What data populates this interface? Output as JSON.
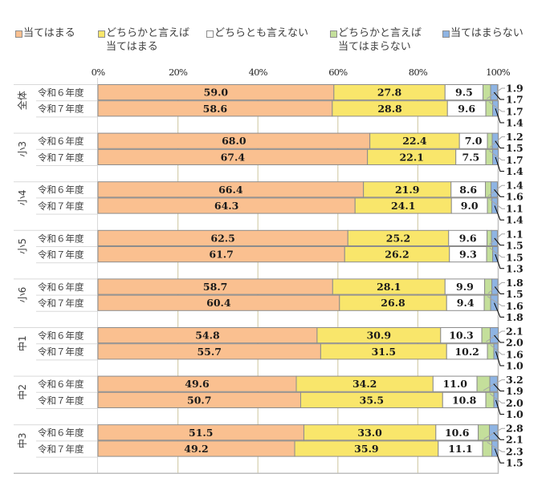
{
  "legend": {
    "items": [
      {
        "lines": [
          "当てはまる",
          ""
        ],
        "color": "#FAC090"
      },
      {
        "lines": [
          "どちらかと言えば",
          "当てはまる"
        ],
        "color": "#F9E66B"
      },
      {
        "lines": [
          "どちらとも言えない",
          ""
        ],
        "color": "#FFFFFF"
      },
      {
        "lines": [
          "どちらかと言えば",
          "当てはまらない"
        ],
        "color": "#C4DF9B"
      },
      {
        "lines": [
          "当てはまらない",
          ""
        ],
        "color": "#8EB4E3"
      }
    ]
  },
  "chart_data": {
    "type": "bar",
    "orientation": "horizontal",
    "stacked": "percent",
    "title": "",
    "xlabel": "",
    "ylabel": "",
    "xlim": [
      0,
      100
    ],
    "xticks": [
      "0%",
      "20%",
      "40%",
      "60%",
      "80%",
      "100%"
    ],
    "grid": true,
    "legend_position": "top",
    "groups": [
      "全体",
      "小3",
      "小4",
      "小5",
      "小6",
      "中1",
      "中2",
      "中3"
    ],
    "row_labels": [
      "令和６年度",
      "令和７年度"
    ],
    "categories": [
      "全体 令和６年度",
      "全体 令和７年度",
      "小3 令和６年度",
      "小3 令和７年度",
      "小4 令和６年度",
      "小4 令和７年度",
      "小5 令和６年度",
      "小5 令和７年度",
      "小6 令和６年度",
      "小6 令和７年度",
      "中1 令和６年度",
      "中1 令和７年度",
      "中2 令和６年度",
      "中2 令和７年度",
      "中3 令和６年度",
      "中3 令和７年度"
    ],
    "series": [
      {
        "name": "当てはまる",
        "color": "#FAC090",
        "values": [
          59.0,
          58.6,
          68.0,
          67.4,
          66.4,
          64.3,
          62.5,
          61.7,
          58.7,
          60.4,
          54.8,
          55.7,
          49.6,
          50.7,
          51.5,
          49.2
        ]
      },
      {
        "name": "どちらかと言えば当てはまる",
        "color": "#F9E66B",
        "values": [
          27.8,
          28.8,
          22.4,
          22.1,
          21.9,
          24.1,
          25.2,
          26.2,
          28.1,
          26.8,
          30.9,
          31.5,
          34.2,
          35.5,
          33.0,
          35.9
        ]
      },
      {
        "name": "どちらとも言えない",
        "color": "#FFFFFF",
        "values": [
          9.5,
          9.6,
          7.0,
          7.5,
          8.6,
          9.0,
          9.6,
          9.3,
          9.9,
          9.4,
          10.3,
          10.2,
          11.0,
          10.8,
          10.6,
          11.1
        ]
      },
      {
        "name": "どちらかと言えば当てはまらない",
        "color": "#C4DF9B",
        "values": [
          1.9,
          1.7,
          1.2,
          1.7,
          1.4,
          1.1,
          1.1,
          1.5,
          1.8,
          1.6,
          2.1,
          1.6,
          3.2,
          2.0,
          2.8,
          2.3
        ]
      },
      {
        "name": "当てはまらない",
        "color": "#8EB4E3",
        "values": [
          1.7,
          1.4,
          1.5,
          1.4,
          1.6,
          1.4,
          1.5,
          1.3,
          1.5,
          1.8,
          2.0,
          1.0,
          1.9,
          1.0,
          2.1,
          1.5
        ]
      }
    ]
  }
}
